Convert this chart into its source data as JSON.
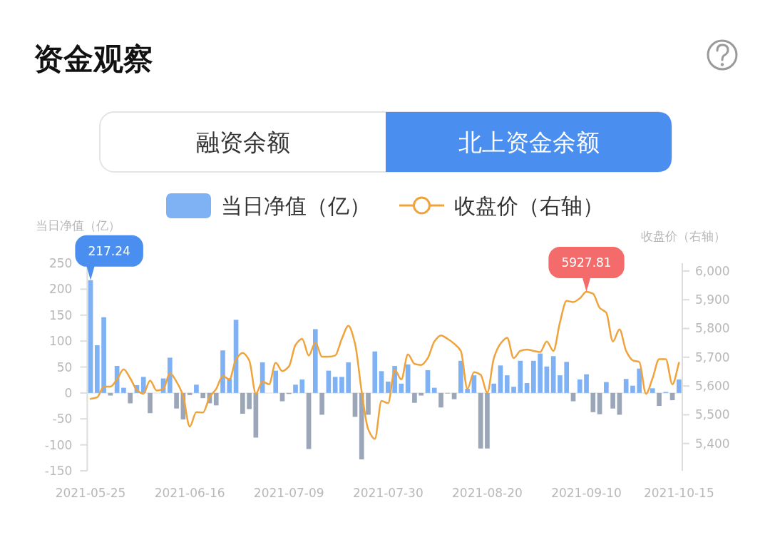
{
  "chart_data": {
    "type": "bar",
    "title": "资金观察",
    "ylabel": "当日净值（亿）",
    "y2label": "收盘价（右轴）",
    "legend": "top",
    "annotations": [
      "融资余额",
      "北上资金余额",
      "217.24",
      "5927.81"
    ],
    "categories": [
      "2021-05-25",
      null,
      null,
      null,
      null,
      null,
      null,
      null,
      null,
      null,
      null,
      null,
      null,
      null,
      null,
      "2021-06-16",
      null,
      null,
      null,
      null,
      null,
      null,
      null,
      null,
      null,
      null,
      null,
      null,
      null,
      null,
      "2021-07-09",
      null,
      null,
      null,
      null,
      null,
      null,
      null,
      null,
      null,
      null,
      null,
      null,
      null,
      null,
      "2021-07-30",
      null,
      null,
      null,
      null,
      null,
      null,
      null,
      null,
      null,
      null,
      null,
      null,
      null,
      null,
      "2021-08-20",
      null,
      null,
      null,
      null,
      null,
      null,
      null,
      null,
      null,
      null,
      null,
      null,
      null,
      null,
      "2021-09-10",
      null,
      null,
      null,
      null,
      null,
      null,
      null,
      null,
      null,
      null,
      null,
      null,
      null,
      "2021-10-15"
    ],
    "ylim": [
      -150,
      250
    ],
    "yticks": [
      -150,
      -100,
      -50,
      0,
      50,
      100,
      150,
      200,
      250
    ],
    "y2lim": [
      5305,
      6027
    ],
    "y2ticks": [
      {
        "value": 5400,
        "label": "5,400"
      },
      {
        "value": 5500,
        "label": "5,500"
      },
      {
        "value": 5600,
        "label": "5,600"
      },
      {
        "value": 5700,
        "label": "5,700"
      },
      {
        "value": 5800,
        "label": "5,800"
      },
      {
        "value": 5900,
        "label": "5,900"
      },
      {
        "value": 6000,
        "label": "6,000"
      }
    ],
    "series": [
      {
        "name": "当日净值（亿）",
        "values": [
          217.24,
          92,
          146,
          -5,
          52,
          10,
          -20,
          15,
          31,
          -39,
          0,
          28,
          68,
          -30,
          -51,
          -4,
          16,
          -10,
          -20,
          -24,
          82,
          28,
          141,
          -40,
          -31,
          -86,
          59,
          0,
          43,
          -16,
          -2,
          16,
          26,
          -108,
          123,
          -42,
          43,
          31,
          31,
          59,
          -46,
          -128,
          -42,
          80,
          42,
          22,
          52,
          18,
          55,
          -19,
          -5,
          44,
          10,
          -28,
          -1,
          -12,
          62,
          8,
          34,
          -107,
          -107,
          18,
          53,
          34,
          12,
          62,
          19,
          62,
          76,
          51,
          71,
          34,
          60,
          -16,
          26,
          36,
          -37,
          -41,
          21,
          -30,
          -42,
          27,
          14,
          47,
          0,
          9,
          -25,
          2,
          -14,
          26
        ],
        "colors": [
          "#7fb2f5",
          "#7fb2f5",
          "#7fb2f5",
          "#9ba7b8",
          "#7fb2f5",
          "#7fb2f5",
          "#9ba7b8",
          "#7fb2f5",
          "#7fb2f5",
          "#9ba7b8",
          "#7fb2f5",
          "#7fb2f5",
          "#7fb2f5",
          "#9ba7b8",
          "#9ba7b8",
          "#9ba7b8",
          "#7fb2f5",
          "#9ba7b8",
          "#9ba7b8",
          "#9ba7b8",
          "#7fb2f5",
          "#7fb2f5",
          "#7fb2f5",
          "#9ba7b8",
          "#9ba7b8",
          "#9ba7b8",
          "#7fb2f5",
          "#7fb2f5",
          "#7fb2f5",
          "#9ba7b8",
          "#9ba7b8",
          "#7fb2f5",
          "#7fb2f5",
          "#9ba7b8",
          "#7fb2f5",
          "#9ba7b8",
          "#7fb2f5",
          "#7fb2f5",
          "#7fb2f5",
          "#7fb2f5",
          "#9ba7b8",
          "#9ba7b8",
          "#9ba7b8",
          "#7fb2f5",
          "#7fb2f5",
          "#7fb2f5",
          "#7fb2f5",
          "#7fb2f5",
          "#7fb2f5",
          "#9ba7b8",
          "#9ba7b8",
          "#7fb2f5",
          "#7fb2f5",
          "#9ba7b8",
          "#9ba7b8",
          "#9ba7b8",
          "#7fb2f5",
          "#7fb2f5",
          "#7fb2f5",
          "#9ba7b8",
          "#9ba7b8",
          "#7fb2f5",
          "#7fb2f5",
          "#7fb2f5",
          "#7fb2f5",
          "#7fb2f5",
          "#7fb2f5",
          "#7fb2f5",
          "#7fb2f5",
          "#7fb2f5",
          "#7fb2f5",
          "#7fb2f5",
          "#7fb2f5",
          "#9ba7b8",
          "#7fb2f5",
          "#7fb2f5",
          "#9ba7b8",
          "#9ba7b8",
          "#7fb2f5",
          "#9ba7b8",
          "#9ba7b8",
          "#7fb2f5",
          "#7fb2f5",
          "#7fb2f5",
          "#7fb2f5",
          "#7fb2f5",
          "#9ba7b8",
          "#7fb2f5",
          "#9ba7b8",
          "#7fb2f5"
        ]
      },
      {
        "name": "收盘价（右轴）",
        "type": "line",
        "axis": "y2",
        "color": "#f0a33a",
        "values": [
          5555,
          5561,
          5598,
          5598,
          5623,
          5658,
          5627,
          5586,
          5573,
          5619,
          5584,
          5590,
          5644,
          5615,
          5565,
          5459,
          5509,
          5508,
          5561,
          5590,
          5635,
          5623,
          5693,
          5715,
          5689,
          5573,
          5615,
          5606,
          5681,
          5652,
          5668,
          5743,
          5764,
          5706,
          5751,
          5702,
          5702,
          5706,
          5764,
          5809,
          5747,
          5581,
          5449,
          5416,
          5548,
          5540,
          5656,
          5623,
          5710,
          5677,
          5673,
          5697,
          5755,
          5776,
          5764,
          5747,
          5722,
          5590,
          5648,
          5639,
          5577,
          5697,
          5747,
          5768,
          5697,
          5722,
          5727,
          5722,
          5718,
          5755,
          5722,
          5822,
          5896,
          5892,
          5905,
          5927.81,
          5921,
          5872,
          5855,
          5755,
          5797,
          5722,
          5689,
          5683,
          5573,
          5627,
          5693,
          5693,
          5606,
          5681
        ]
      }
    ]
  }
}
